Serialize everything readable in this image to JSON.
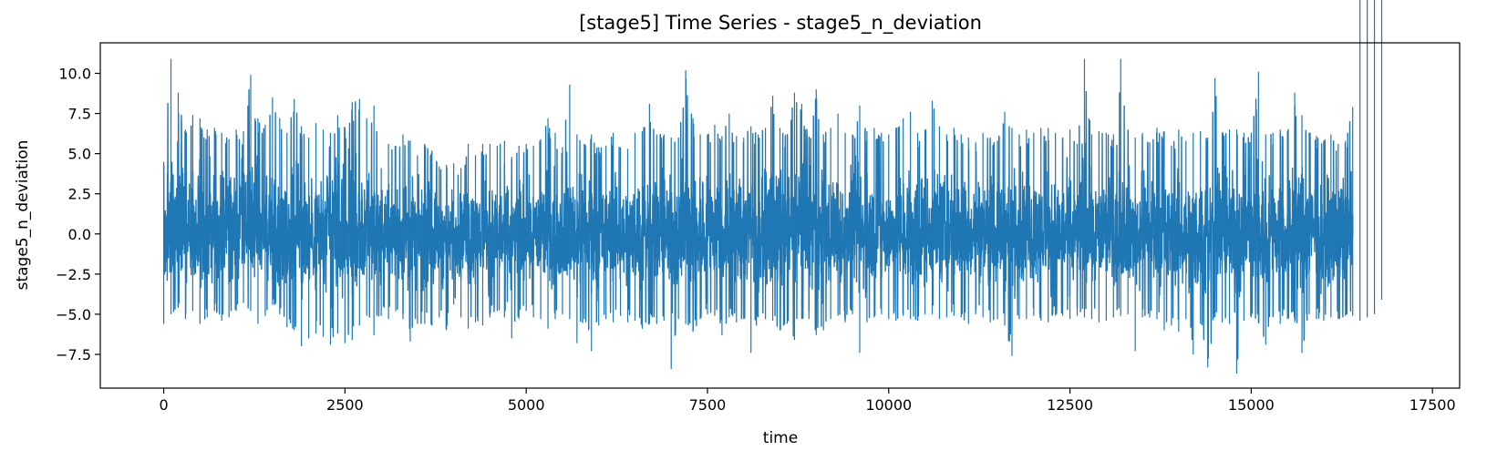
{
  "chart_data": {
    "type": "line",
    "title": "[stage5] Time Series - stage5_n_deviation",
    "xlabel": "time",
    "ylabel": "stage5_n_deviation",
    "xlim": [
      -875,
      17875
    ],
    "ylim": [
      -9.6,
      11.9
    ],
    "xticks": [
      0,
      2500,
      5000,
      7500,
      10000,
      12500,
      15000,
      17500
    ],
    "xtick_labels": [
      "0",
      "2500",
      "5000",
      "7500",
      "10000",
      "12500",
      "15000",
      "17500"
    ],
    "yticks": [
      -7.5,
      -5.0,
      -2.5,
      0.0,
      2.5,
      5.0,
      7.5,
      10.0
    ],
    "ytick_labels": [
      "−7.5",
      "−5.0",
      "−2.5",
      "0.0",
      "2.5",
      "5.0",
      "7.5",
      "10.0"
    ],
    "grid": false,
    "legend": "none",
    "series": [
      {
        "color": "#1f77b4",
        "x_start": 0,
        "x_end": 17000,
        "envelope_step": 100,
        "envelope_x": [
          0,
          100,
          200,
          300,
          400,
          500,
          600,
          700,
          800,
          900,
          1000,
          1100,
          1200,
          1300,
          1400,
          1500,
          1600,
          1700,
          1800,
          1900,
          2000,
          2100,
          2200,
          2300,
          2400,
          2500,
          2600,
          2700,
          2800,
          2900,
          3000,
          3100,
          3200,
          3300,
          3400,
          3500,
          3600,
          3700,
          3800,
          3900,
          4000,
          4100,
          4200,
          4300,
          4400,
          4500,
          4600,
          4700,
          4800,
          4900,
          5000,
          5100,
          5200,
          5300,
          5400,
          5500,
          5600,
          5700,
          5800,
          5900,
          6000,
          6100,
          6200,
          6300,
          6400,
          6500,
          6600,
          6700,
          6800,
          6900,
          7000,
          7100,
          7200,
          7300,
          7400,
          7500,
          7600,
          7700,
          7800,
          7900,
          8000,
          8100,
          8200,
          8300,
          8400,
          8500,
          8600,
          8700,
          8800,
          8900,
          9000,
          9100,
          9200,
          9300,
          9400,
          9500,
          9600,
          9700,
          9800,
          9900,
          10000,
          10100,
          10200,
          10300,
          10400,
          10500,
          10600,
          10700,
          10800,
          10900,
          11000,
          11100,
          11200,
          11300,
          11400,
          11500,
          11600,
          11700,
          11800,
          11900,
          12000,
          12100,
          12200,
          12300,
          12400,
          12500,
          12600,
          12700,
          12800,
          12900,
          13000,
          13100,
          13200,
          13300,
          13400,
          13500,
          13600,
          13700,
          13800,
          13900,
          14000,
          14100,
          14200,
          14300,
          14400,
          14500,
          14600,
          14700,
          14800,
          14900,
          15000,
          15100,
          15200,
          15300,
          15400,
          15500,
          15600,
          15700,
          15800,
          15900,
          16000,
          16100,
          16200,
          16300,
          16400,
          16500,
          16600,
          16700,
          16800,
          16900,
          17000
        ],
        "envelope_max": [
          4.5,
          10.9,
          8.8,
          6.5,
          7.4,
          7.2,
          6.5,
          6.6,
          6.3,
          5.9,
          6.5,
          6.4,
          9.9,
          7.2,
          6.8,
          8.5,
          7.2,
          6.3,
          8.4,
          6.7,
          6.0,
          6.9,
          6.5,
          6.3,
          7.4,
          6.6,
          8.2,
          8.4,
          7.2,
          8.0,
          4.1,
          5.6,
          5.5,
          6.2,
          5.8,
          4.9,
          5.6,
          5.2,
          4.2,
          4.3,
          4.4,
          4.1,
          5.6,
          4.9,
          5.6,
          5.6,
          5.5,
          5.8,
          4.8,
          5.5,
          5.6,
          5.5,
          5.9,
          7.2,
          6.3,
          5.4,
          9.3,
          6.2,
          5.6,
          6.2,
          5.4,
          5.5,
          6.3,
          5.4,
          5.3,
          6.3,
          6.4,
          8.1,
          6.2,
          6.2,
          6.0,
          6.0,
          10.2,
          7.2,
          6.2,
          6.2,
          6.8,
          6.1,
          7.5,
          6.1,
          6.0,
          6.7,
          6.2,
          6.6,
          8.6,
          6.6,
          6.2,
          8.8,
          8.1,
          6.0,
          9.0,
          6.2,
          6.6,
          7.5,
          6.3,
          6.2,
          8.0,
          6.4,
          6.6,
          6.3,
          6.2,
          6.6,
          7.2,
          7.6,
          6.3,
          6.5,
          8.3,
          6.7,
          6.2,
          6.6,
          6.2,
          6.0,
          5.7,
          6.3,
          6.0,
          5.8,
          7.6,
          6.6,
          6.2,
          6.5,
          6.3,
          6.6,
          6.6,
          6.3,
          6.0,
          6.5,
          5.6,
          10.9,
          6.2,
          6.4,
          6.3,
          6.2,
          10.9,
          6.5,
          6.0,
          6.3,
          5.7,
          6.6,
          6.4,
          5.5,
          6.5,
          5.8,
          6.3,
          6.4,
          6.0,
          9.7,
          6.3,
          6.5,
          6.5,
          6.3,
          6.3,
          10.1,
          6.2,
          6.3,
          6.5,
          6.4,
          8.8,
          7.4,
          6.3,
          6.1,
          5.8,
          6.2,
          5.6,
          5.8,
          7.9
        ],
        "envelope_min": [
          -5.6,
          -5.0,
          -4.6,
          -5.3,
          -4.8,
          -5.6,
          -5.2,
          -4.8,
          -5.4,
          -5.2,
          -4.8,
          -4.3,
          -4.8,
          -5.6,
          -5.1,
          -4.4,
          -5.0,
          -5.8,
          -6.0,
          -7.0,
          -6.5,
          -6.2,
          -6.4,
          -6.9,
          -6.2,
          -6.8,
          -6.6,
          -5.7,
          -5.1,
          -6.3,
          -5.1,
          -5.3,
          -4.8,
          -5.3,
          -6.7,
          -5.6,
          -5.6,
          -5.7,
          -5.2,
          -6.0,
          -4.4,
          -5.2,
          -5.9,
          -5.5,
          -5.7,
          -5.2,
          -4.8,
          -5.2,
          -6.5,
          -5.3,
          -4.8,
          -5.2,
          -5.3,
          -5.9,
          -5.3,
          -5.0,
          -5.3,
          -6.8,
          -5.3,
          -7.3,
          -5.7,
          -5.3,
          -5.5,
          -5.1,
          -5.5,
          -5.4,
          -5.9,
          -5.6,
          -5.6,
          -5.4,
          -8.4,
          -5.3,
          -5.6,
          -6.1,
          -5.3,
          -5.0,
          -5.1,
          -6.3,
          -5.2,
          -5.5,
          -5.3,
          -7.4,
          -5.2,
          -5.3,
          -5.4,
          -6.0,
          -5.6,
          -6.6,
          -5.3,
          -5.3,
          -6.3,
          -6.0,
          -5.3,
          -5.1,
          -5.5,
          -5.0,
          -7.4,
          -5.5,
          -5.2,
          -5.0,
          -5.3,
          -5.4,
          -5.1,
          -5.3,
          -5.4,
          -5.0,
          -5.0,
          -5.3,
          -5.2,
          -5.1,
          -5.2,
          -5.6,
          -5.0,
          -5.2,
          -5.5,
          -5.3,
          -5.7,
          -7.6,
          -5.3,
          -5.3,
          -5.1,
          -5.4,
          -5.5,
          -5.1,
          -5.1,
          -5.3,
          -5.1,
          -5.2,
          -5.3,
          -5.5,
          -5.4,
          -5.2,
          -5.1,
          -5.0,
          -7.3,
          -5.2,
          -5.2,
          -5.3,
          -6.0,
          -5.7,
          -6.1,
          -5.3,
          -7.5,
          -5.6,
          -8.3,
          -5.2,
          -5.5,
          -5.6,
          -8.7,
          -5.4,
          -5.2,
          -5.5,
          -6.9,
          -5.2,
          -5.6,
          -5.3,
          -5.5,
          -7.4,
          -5.0,
          -5.3,
          -5.4,
          -5.2,
          -5.3,
          -5.1,
          -5.1,
          -5.4,
          -5.2,
          -5.0,
          -4.1
        ]
      }
    ]
  }
}
